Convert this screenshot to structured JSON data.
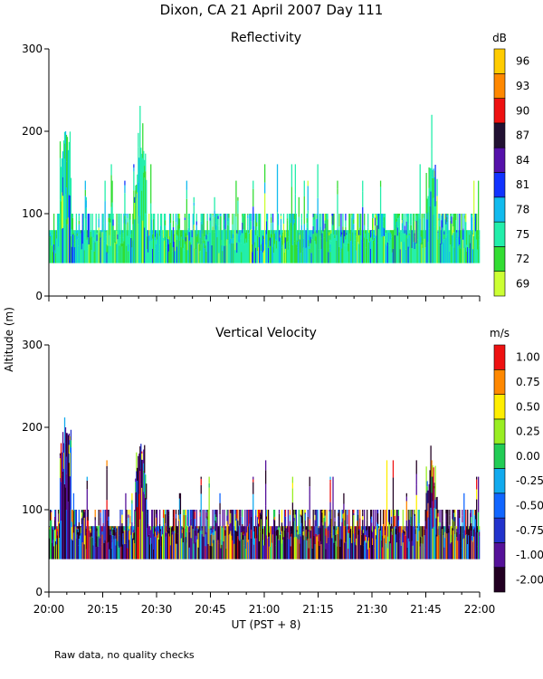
{
  "figure": {
    "title": "Dixon, CA 21 April 2007  Day 111",
    "ylabel": "Altitude (m)",
    "xlabel": "UT  (PST + 8)",
    "footnote": "Raw data, no quality checks"
  },
  "chart_data": [
    {
      "type": "heatmap",
      "title": "Reflectivity",
      "colorbar_unit": "dB",
      "colorbar_ticks": [
        "69",
        "72",
        "75",
        "78",
        "81",
        "84",
        "87",
        "90",
        "93",
        "96"
      ],
      "colorbar_colors": [
        "#ccff33",
        "#33dd33",
        "#22eeaa",
        "#11bbee",
        "#1133ff",
        "#5511aa",
        "#221133",
        "#ee1111",
        "#ff8800",
        "#ffcc00"
      ],
      "xlim": [
        "20:00",
        "22:00"
      ],
      "x_ticks": [
        "20:00",
        "20:15",
        "20:30",
        "20:45",
        "21:00",
        "21:15",
        "21:30",
        "21:45",
        "22:00"
      ],
      "ylim": [
        0,
        300
      ],
      "y_ticks": [
        0,
        100,
        200,
        300
      ],
      "data_time_range_min": [
        0,
        120
      ],
      "data_base_altitude_m": 40,
      "typical_echo_top_m": [
        80,
        100
      ],
      "peaks": [
        {
          "time_min": 4.5,
          "altitude_m": 200
        },
        {
          "time_min": 25.5,
          "altitude_m": 180
        },
        {
          "time_min": 106.5,
          "altitude_m": 160
        }
      ]
    },
    {
      "type": "heatmap",
      "title": "Vertical Velocity",
      "colorbar_unit": "m/s",
      "colorbar_ticks": [
        "-2.00",
        "-1.00",
        "-0.75",
        "-0.50",
        "-0.25",
        "0.00",
        "0.25",
        "0.50",
        "0.75",
        "1.00"
      ],
      "colorbar_colors": [
        "#220022",
        "#551199",
        "#2233cc",
        "#1166ff",
        "#11aaee",
        "#22cc55",
        "#99ee22",
        "#ffee00",
        "#ff8800",
        "#ee1111"
      ],
      "xlim": [
        "20:00",
        "22:00"
      ],
      "x_ticks": [
        "20:00",
        "20:15",
        "20:30",
        "20:45",
        "21:00",
        "21:15",
        "21:30",
        "21:45",
        "22:00"
      ],
      "ylim": [
        0,
        300
      ],
      "y_ticks": [
        0,
        100,
        200,
        300
      ],
      "data_time_range_min": [
        0,
        120
      ],
      "data_base_altitude_m": 40,
      "typical_echo_top_m": [
        80,
        100
      ],
      "peaks": [
        {
          "time_min": 4.5,
          "altitude_m": 200
        },
        {
          "time_min": 25.5,
          "altitude_m": 180
        },
        {
          "time_min": 106.5,
          "altitude_m": 160
        }
      ]
    }
  ]
}
